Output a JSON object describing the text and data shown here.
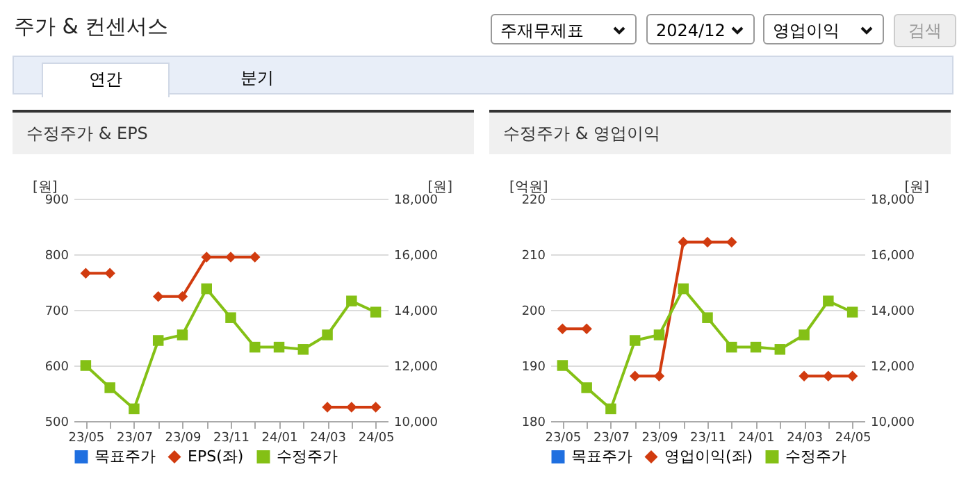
{
  "chart_data": [
    {
      "type": "other",
      "title": "주가 & 컨센서스",
      "annotations": [
        "주재무제표",
        "2024/12",
        "영업이익",
        "검색",
        "연간",
        "분기"
      ]
    },
    {
      "type": "line",
      "title": "수정주가 & EPS",
      "ylabel": "[원]",
      "y2label": "[원]",
      "categories": [
        "23/05",
        null,
        "23/07",
        null,
        "23/09",
        null,
        "23/11",
        null,
        "24/01",
        null,
        "24/03",
        null,
        "24/05"
      ],
      "ylim": [
        500,
        900
      ],
      "yticks": [
        500,
        600,
        700,
        800,
        900
      ],
      "y2lim": [
        10000,
        18000
      ],
      "y2ticks": [
        {
          "value": 10000,
          "label": "10,000"
        },
        {
          "value": 12000,
          "label": "12,000"
        },
        {
          "value": 14000,
          "label": "14,000"
        },
        {
          "value": 16000,
          "label": "16,000"
        },
        {
          "value": 18000,
          "label": "18,000"
        }
      ],
      "grid": "y",
      "legend": "bottom",
      "series": [
        {
          "name": "목표주가",
          "color": "#1f6fe0",
          "marker": "square",
          "values": [
            null,
            null,
            null,
            null,
            null,
            null,
            null,
            null,
            null,
            null,
            null,
            null,
            null
          ]
        },
        {
          "name": "EPS(좌)",
          "color": "#d13b0f",
          "marker": "diamond",
          "values": [
            766,
            766,
            null,
            724,
            724,
            795,
            795,
            795,
            null,
            null,
            525,
            525,
            525
          ]
        },
        {
          "name": "수정주가",
          "color": "#84c015",
          "marker": "square",
          "axis": "y2",
          "values": [
            12000,
            11200,
            10440,
            12900,
            13100,
            14760,
            13720,
            12660,
            12660,
            12580,
            13100,
            14320,
            13920
          ]
        }
      ]
    },
    {
      "type": "line",
      "title": "수정주가 & 영업이익",
      "ylabel": "[억원]",
      "y2label": "[원]",
      "categories": [
        "23/05",
        null,
        "23/07",
        null,
        "23/09",
        null,
        "23/11",
        null,
        "24/01",
        null,
        "24/03",
        null,
        "24/05"
      ],
      "ylim": [
        180,
        220
      ],
      "yticks": [
        180,
        190,
        200,
        210,
        220
      ],
      "y2lim": [
        10000,
        18000
      ],
      "y2ticks": [
        {
          "value": 10000,
          "label": "10,000"
        },
        {
          "value": 12000,
          "label": "12,000"
        },
        {
          "value": 14000,
          "label": "14,000"
        },
        {
          "value": 16000,
          "label": "16,000"
        },
        {
          "value": 18000,
          "label": "18,000"
        }
      ],
      "grid": "y",
      "legend": "bottom",
      "series": [
        {
          "name": "목표주가",
          "color": "#1f6fe0",
          "marker": "square",
          "values": [
            null,
            null,
            null,
            null,
            null,
            null,
            null,
            null,
            null,
            null,
            null,
            null,
            null
          ]
        },
        {
          "name": "영업이익(좌)",
          "color": "#d13b0f",
          "marker": "diamond",
          "values": [
            196.6,
            196.6,
            null,
            188.1,
            188.1,
            212.2,
            212.2,
            212.2,
            null,
            null,
            188.1,
            188.1,
            188.1
          ]
        },
        {
          "name": "수정주가",
          "color": "#84c015",
          "marker": "square",
          "axis": "y2",
          "values": [
            12000,
            11200,
            10440,
            12900,
            13100,
            14760,
            13720,
            12660,
            12660,
            12580,
            13100,
            14320,
            13920
          ]
        }
      ]
    }
  ]
}
